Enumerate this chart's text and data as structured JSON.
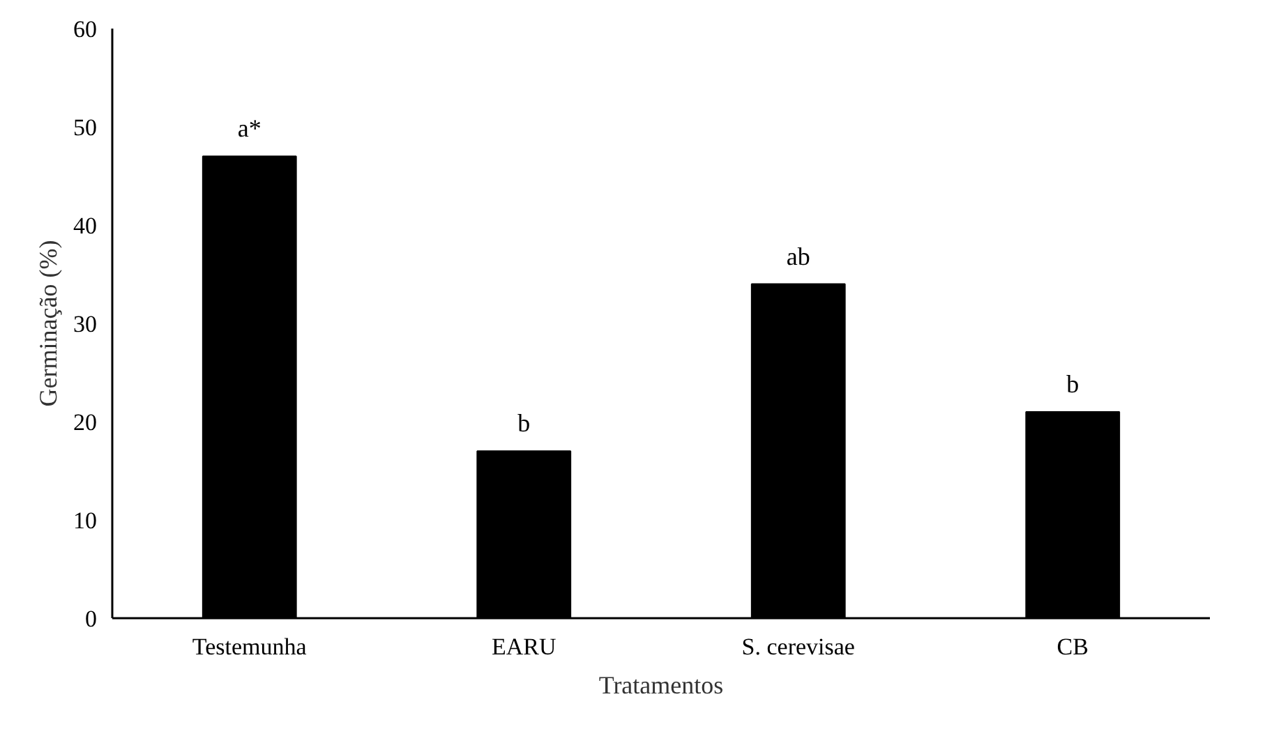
{
  "chart_data": {
    "type": "bar",
    "xlabel": "Tratamentos",
    "ylabel": "Germinação (%)",
    "categories": [
      "Testemunha",
      "EARU",
      "S. cerevisae",
      "CB"
    ],
    "values": [
      47,
      17,
      34,
      21
    ],
    "color": "#000000",
    "ylim": [
      0,
      60
    ],
    "yticks": [
      0,
      10,
      20,
      30,
      40,
      50,
      60
    ],
    "grid": false,
    "annotations": [
      {
        "text": "a*",
        "x": "Testemunha",
        "y": 47
      },
      {
        "text": "b",
        "x": "EARU",
        "y": 17
      },
      {
        "text": "ab",
        "x": "S. cerevisae",
        "y": 34
      },
      {
        "text": "b",
        "x": "CB",
        "y": 21
      }
    ]
  }
}
